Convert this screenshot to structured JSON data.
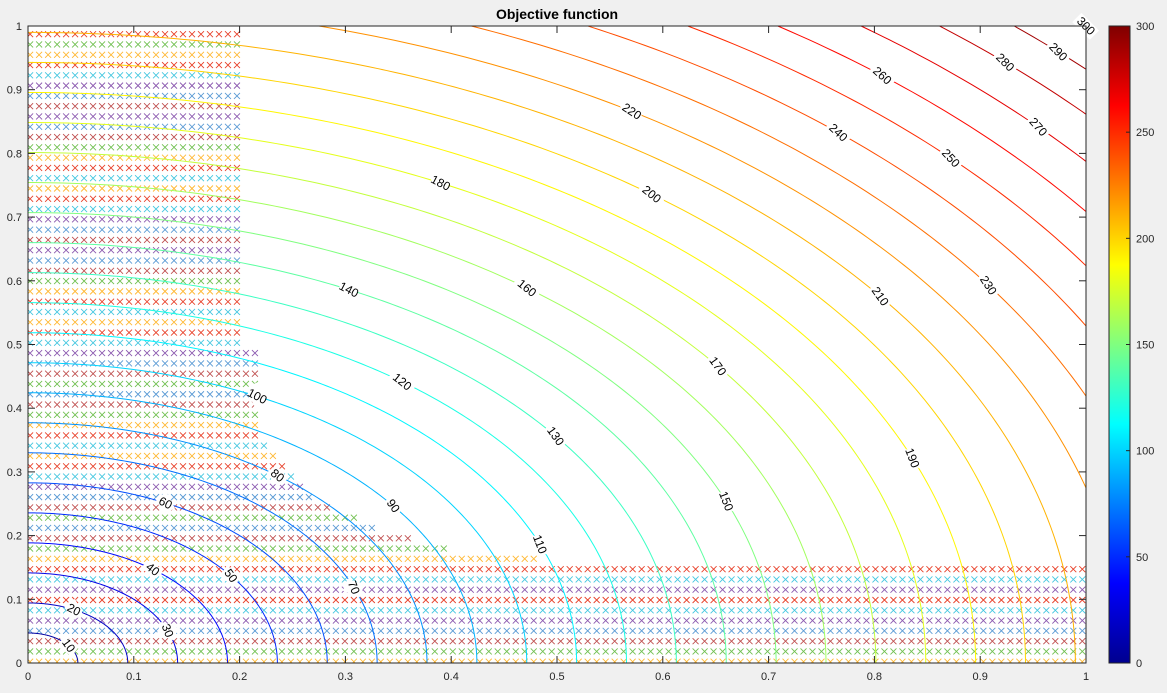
{
  "chart_data": {
    "type": "contour",
    "title": "Objective function",
    "xlabel": "",
    "ylabel": "",
    "xlim": [
      0,
      1
    ],
    "ylim": [
      0,
      1
    ],
    "x_ticks": [
      "0",
      "0.1",
      "0.2",
      "0.3",
      "0.4",
      "0.5",
      "0.6",
      "0.7",
      "0.8",
      "0.9",
      "1"
    ],
    "y_ticks": [
      "0",
      "0.1",
      "0.2",
      "0.3",
      "0.4",
      "0.5",
      "0.6",
      "0.7",
      "0.8",
      "0.9",
      "1"
    ],
    "contour_levels": [
      10,
      20,
      30,
      40,
      50,
      60,
      70,
      80,
      90,
      100,
      110,
      120,
      130,
      140,
      150,
      160,
      170,
      180,
      190,
      200,
      210,
      220,
      230,
      240,
      250,
      260,
      270,
      280,
      290,
      300
    ],
    "contour_labels": [
      "10",
      "20",
      "30",
      "40",
      "50",
      "60",
      "70",
      "80",
      "90",
      "100",
      "110",
      "120",
      "130",
      "140",
      "150",
      "160",
      "170",
      "180",
      "190",
      "200",
      "210",
      "220",
      "230",
      "240",
      "250",
      "260",
      "270",
      "280",
      "290",
      "300"
    ],
    "colorbar": {
      "range": [
        0,
        300
      ],
      "ticks": [
        "0",
        "50",
        "100",
        "150",
        "200",
        "250",
        "300"
      ],
      "colormap": "jet"
    },
    "sample_markers": {
      "marker": "x",
      "region_boundary": [
        [
          0,
          1.0
        ],
        [
          0.2,
          1.0
        ],
        [
          0.2,
          0.5
        ],
        [
          0.22,
          0.5
        ],
        [
          0.22,
          0.35
        ],
        [
          0.28,
          0.25
        ],
        [
          0.35,
          0.2
        ],
        [
          0.42,
          0.17
        ],
        [
          0.52,
          0.16
        ],
        [
          0.7,
          0.15
        ],
        [
          1.0,
          0.15
        ],
        [
          1.0,
          0
        ]
      ]
    }
  }
}
